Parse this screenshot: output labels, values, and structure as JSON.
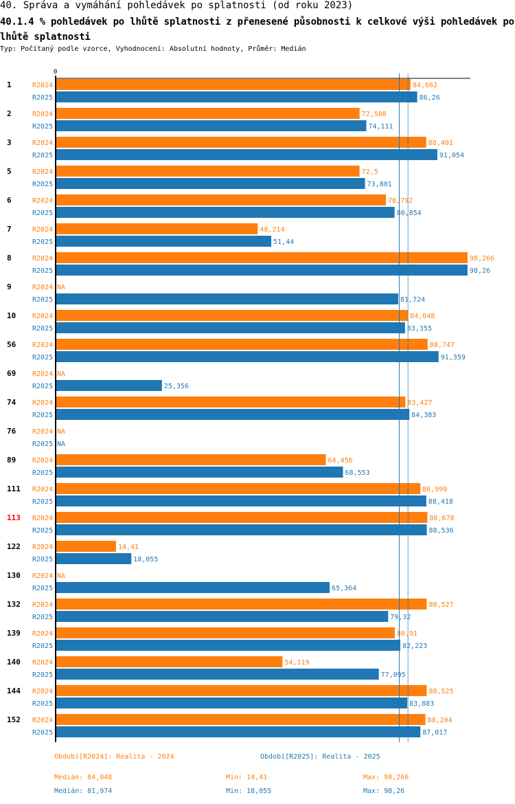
{
  "header": {
    "title": "40. Správa a vymáhání pohledávek po splatnosti (od roku 2023)",
    "subtitle": "40.1.4 % pohledávek po lhůtě splatnosti z přenesené působnosti k celkové výši pohledávek po lhůtě splatnosti",
    "meta": "Typ: Počítaný podle vzorce, Vyhodnocení: Absolutní hodnoty, Průměr: Medián"
  },
  "chart_data": {
    "type": "bar",
    "orientation": "horizontal",
    "axis_zero_label": "0",
    "xlim": [
      0,
      100
    ],
    "colors": {
      "R2024": "#ff7f0e",
      "R2025": "#1f77b4",
      "highlight": "#ff0000"
    },
    "highlight_category": "113",
    "categories": [
      "1",
      "2",
      "3",
      "5",
      "6",
      "7",
      "8",
      "9",
      "10",
      "56",
      "69",
      "74",
      "76",
      "89",
      "111",
      "113",
      "122",
      "130",
      "132",
      "139",
      "140",
      "144",
      "152"
    ],
    "series": [
      {
        "name": "R2024",
        "values": [
          84.662,
          72.508,
          88.401,
          72.5,
          78.792,
          48.214,
          98.266,
          null,
          84.048,
          88.747,
          null,
          83.427,
          null,
          64.456,
          86.999,
          88.678,
          14.41,
          null,
          88.527,
          80.91,
          54.119,
          88.525,
          88.204
        ],
        "labels": [
          "84,662",
          "72,508",
          "88,401",
          "72,5",
          "78,792",
          "48,214",
          "98,266",
          "NA",
          "84,048",
          "88,747",
          "NA",
          "83,427",
          "NA",
          "64,456",
          "86,999",
          "88,678",
          "14,41",
          "NA",
          "88,527",
          "80,91",
          "54,119",
          "88,525",
          "88,204"
        ]
      },
      {
        "name": "R2025",
        "values": [
          86.26,
          74.111,
          91.054,
          73.801,
          80.854,
          51.44,
          98.26,
          81.724,
          83.355,
          91.359,
          25.356,
          84.383,
          null,
          68.553,
          88.418,
          88.536,
          18.055,
          65.364,
          79.32,
          82.223,
          77.095,
          83.883,
          87.017
        ],
        "labels": [
          "86,26",
          "74,111",
          "91,054",
          "73,801",
          "80,854",
          "51,44",
          "98,26",
          "81,724",
          "83,355",
          "91,359",
          "25,356",
          "84,383",
          "NA",
          "68,553",
          "88,418",
          "88,536",
          "18,055",
          "65,364",
          "79,32",
          "82,223",
          "77,095",
          "83,883",
          "87,017"
        ]
      }
    ],
    "median_lines": {
      "R2024": 84.048,
      "R2025": 81.974
    }
  },
  "legend": {
    "r2024": "Období[R2024]: Realita - 2024",
    "r2025": "Období[R2025]: Realita - 2025"
  },
  "stats": {
    "r2024": {
      "median": "Medián: 84,048",
      "min": "Min: 14,41",
      "max": "Max: 98,266"
    },
    "r2025": {
      "median": "Medián: 81,974",
      "min": "Min: 18,055",
      "max": "Max: 98,26"
    }
  }
}
